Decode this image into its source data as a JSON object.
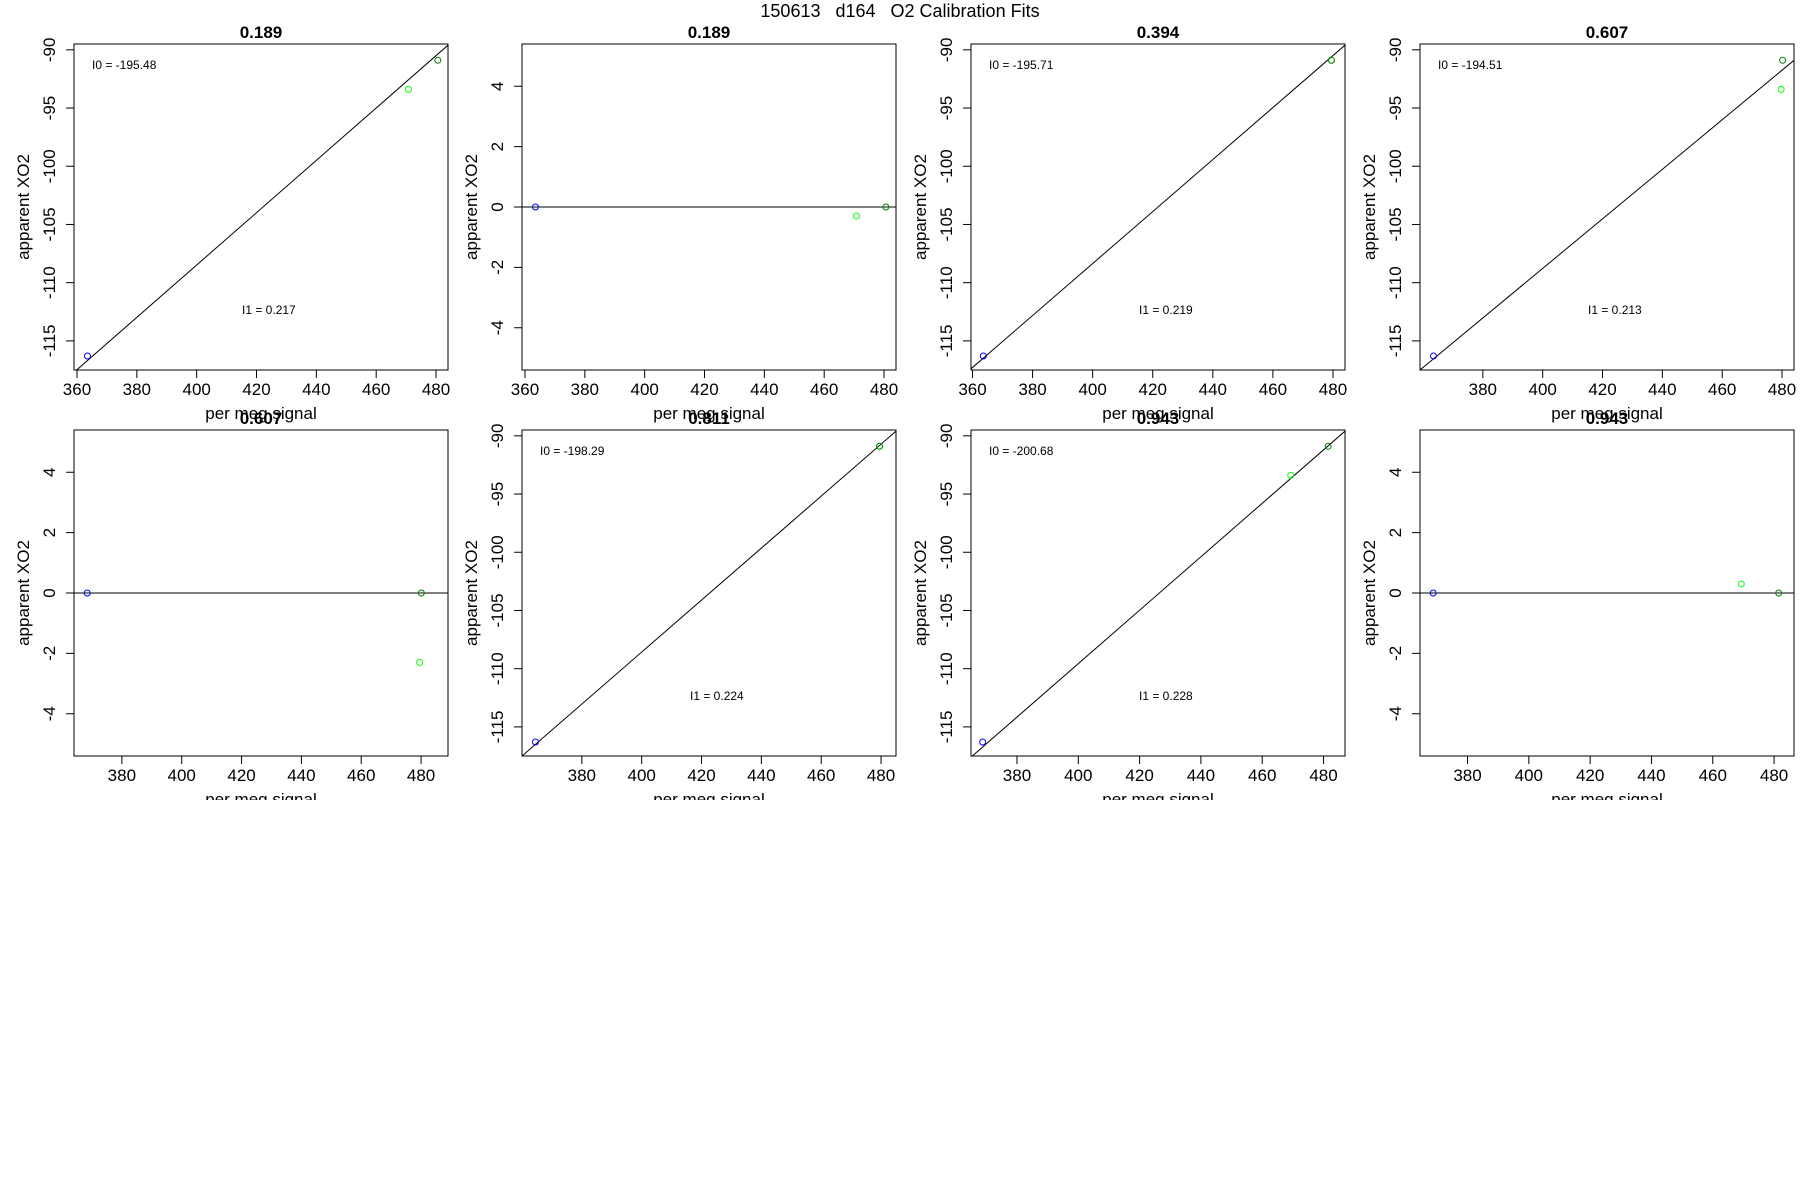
{
  "title": "150613   d164   O2 Calibration Fits",
  "chart_data": [
    {
      "type": "scatter",
      "title": "0.189",
      "xlabel": "per meg signal",
      "ylabel": "apparent XO2",
      "xlim": [
        359,
        484
      ],
      "ylim": [
        -117.5,
        -89.5
      ],
      "xticks": [
        360,
        380,
        400,
        420,
        440,
        460,
        480
      ],
      "yticks": [
        -115,
        -110,
        -105,
        -100,
        -95,
        -90
      ],
      "points": [
        {
          "x": 363.5,
          "y": -116.3,
          "color": "#0000ff"
        },
        {
          "x": 470.8,
          "y": -93.4,
          "color": "#00ff00"
        },
        {
          "x": 480.6,
          "y": -90.9,
          "color": "#008000"
        }
      ],
      "fit_line": [
        [
          359,
          -117.7
        ],
        [
          484,
          -89.6
        ]
      ],
      "annotations": [
        {
          "text": "I0 =  -195.48",
          "pos": "top-left"
        },
        {
          "text": "I1 =  0.217",
          "pos": "center"
        }
      ]
    },
    {
      "type": "scatter",
      "title": "0.189",
      "xlabel": "per meg signal",
      "ylabel": "apparent XO2",
      "xlim": [
        359,
        484
      ],
      "ylim": [
        -5.4,
        5.4
      ],
      "xticks": [
        360,
        380,
        400,
        420,
        440,
        460,
        480
      ],
      "yticks": [
        -4,
        -2,
        0,
        2,
        4
      ],
      "points": [
        {
          "x": 363.5,
          "y": 0,
          "color": "#0000ff"
        },
        {
          "x": 470.8,
          "y": -0.3,
          "color": "#00ff00"
        },
        {
          "x": 480.6,
          "y": 0,
          "color": "#008000"
        }
      ],
      "fit_line": [
        [
          359,
          0
        ],
        [
          484,
          0
        ]
      ],
      "annotations": []
    },
    {
      "type": "scatter",
      "title": "0.394",
      "xlabel": "per meg signal",
      "ylabel": "apparent XO2",
      "xlim": [
        359.5,
        484
      ],
      "ylim": [
        -117.5,
        -89.5
      ],
      "xticks": [
        360,
        380,
        400,
        420,
        440,
        460,
        480
      ],
      "yticks": [
        -115,
        -110,
        -105,
        -100,
        -95,
        -90
      ],
      "points": [
        {
          "x": 363.6,
          "y": -116.3,
          "color": "#0000ff"
        },
        {
          "x": 479.5,
          "y": -90.9,
          "color": "#00ff00"
        },
        {
          "x": 479.5,
          "y": -90.9,
          "color": "#008000"
        }
      ],
      "fit_line": [
        [
          359.5,
          -117.4
        ],
        [
          484,
          -89.6
        ]
      ],
      "annotations": [
        {
          "text": "I0 =  -195.71",
          "pos": "top-left"
        },
        {
          "text": "I1 =  0.219",
          "pos": "center"
        }
      ]
    },
    {
      "type": "scatter",
      "title": "0.607",
      "xlabel": "per meg signal",
      "ylabel": "apparent XO2",
      "xlim": [
        359,
        484
      ],
      "ylim": [
        -117.5,
        -89.5
      ],
      "xticks": [
        380,
        400,
        420,
        440,
        460,
        480
      ],
      "yticks": [
        -115,
        -110,
        -105,
        -100,
        -95,
        -90
      ],
      "points": [
        {
          "x": 363.5,
          "y": -116.3,
          "color": "#0000ff"
        },
        {
          "x": 479.7,
          "y": -93.4,
          "color": "#00ff00"
        },
        {
          "x": 480.2,
          "y": -90.9,
          "color": "#008000"
        }
      ],
      "fit_line": [
        [
          359,
          -117.5
        ],
        [
          484,
          -90.9
        ]
      ],
      "annotations": [
        {
          "text": "I0 =  -194.51",
          "pos": "top-left"
        },
        {
          "text": "I1 =  0.213",
          "pos": "center"
        }
      ]
    },
    {
      "type": "scatter",
      "title": "0.607",
      "xlabel": "per meg signal",
      "ylabel": "apparent XO2",
      "xlim": [
        364,
        489
      ],
      "ylim": [
        -5.4,
        5.4
      ],
      "xticks": [
        380,
        400,
        420,
        440,
        460,
        480
      ],
      "yticks": [
        -4,
        -2,
        0,
        2,
        4
      ],
      "points": [
        {
          "x": 368.4,
          "y": 0,
          "color": "#0000ff"
        },
        {
          "x": 479.5,
          "y": -2.3,
          "color": "#00ff00"
        },
        {
          "x": 480.1,
          "y": 0,
          "color": "#008000"
        }
      ],
      "fit_line": [
        [
          364,
          0
        ],
        [
          489,
          0
        ]
      ],
      "annotations": []
    },
    {
      "type": "scatter",
      "title": "0.811",
      "xlabel": "per meg signal",
      "ylabel": "apparent XO2",
      "xlim": [
        360,
        485
      ],
      "ylim": [
        -117.5,
        -89.5
      ],
      "xticks": [
        380,
        400,
        420,
        440,
        460,
        480
      ],
      "yticks": [
        -115,
        -110,
        -105,
        -100,
        -95,
        -90
      ],
      "points": [
        {
          "x": 364.5,
          "y": -116.3,
          "color": "#0000ff"
        },
        {
          "x": 479.5,
          "y": -90.9,
          "color": "#00ff00"
        },
        {
          "x": 479.5,
          "y": -90.9,
          "color": "#008000"
        }
      ],
      "fit_line": [
        [
          360,
          -117.5
        ],
        [
          485,
          -89.6
        ]
      ],
      "annotations": [
        {
          "text": "I0 =  -198.29",
          "pos": "top-left"
        },
        {
          "text": "I1 =  0.224",
          "pos": "center"
        }
      ]
    },
    {
      "type": "scatter",
      "title": "0.943",
      "xlabel": "per meg signal",
      "ylabel": "apparent XO2",
      "xlim": [
        365,
        487
      ],
      "ylim": [
        -117.5,
        -89.5
      ],
      "xticks": [
        380,
        400,
        420,
        440,
        460,
        480
      ],
      "yticks": [
        -115,
        -110,
        -105,
        -100,
        -95,
        -90
      ],
      "points": [
        {
          "x": 368.8,
          "y": -116.3,
          "color": "#0000ff"
        },
        {
          "x": 469.3,
          "y": -93.4,
          "color": "#00ff00"
        },
        {
          "x": 481.5,
          "y": -90.9,
          "color": "#008000"
        }
      ],
      "fit_line": [
        [
          365,
          -117.6
        ],
        [
          487,
          -89.6
        ]
      ],
      "annotations": [
        {
          "text": "I0 =  -200.68",
          "pos": "top-left"
        },
        {
          "text": "I1 =  0.228",
          "pos": "center"
        }
      ]
    },
    {
      "type": "scatter",
      "title": "0.943",
      "xlabel": "per meg signal",
      "ylabel": "apparent XO2",
      "xlim": [
        364.5,
        486.5
      ],
      "ylim": [
        -5.4,
        5.4
      ],
      "xticks": [
        380,
        400,
        420,
        440,
        460,
        480
      ],
      "yticks": [
        -4,
        -2,
        0,
        2,
        4
      ],
      "points": [
        {
          "x": 368.8,
          "y": 0,
          "color": "#0000ff"
        },
        {
          "x": 469.3,
          "y": 0.3,
          "color": "#00ff00"
        },
        {
          "x": 481.5,
          "y": 0,
          "color": "#008000"
        }
      ],
      "fit_line": [
        [
          364.5,
          0
        ],
        [
          486.5,
          0
        ]
      ],
      "annotations": []
    }
  ]
}
